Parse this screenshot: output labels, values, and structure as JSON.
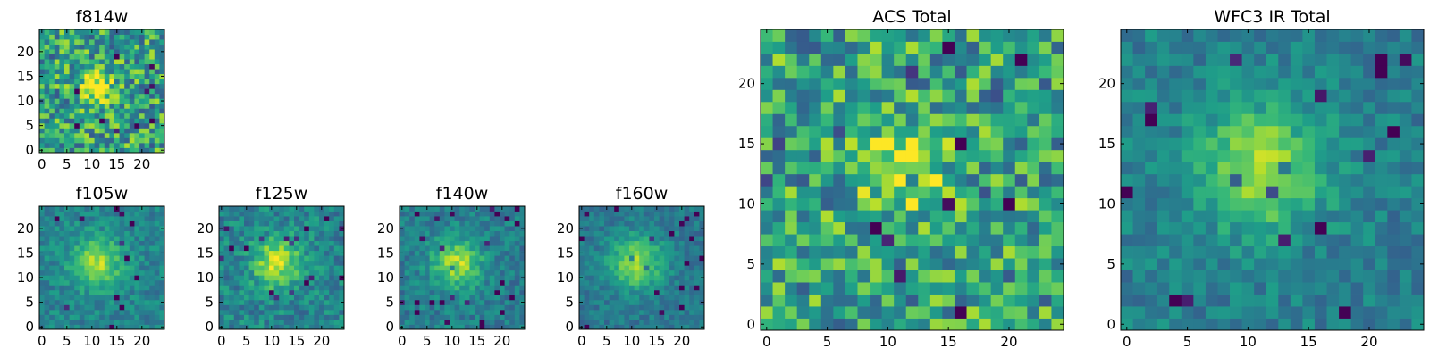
{
  "chart_data": [
    {
      "type": "heatmap",
      "title": "f814w",
      "xticks": [
        0,
        5,
        10,
        15,
        20
      ],
      "yticks": [
        0,
        5,
        10,
        15,
        20
      ],
      "xlim": [
        0,
        24
      ],
      "ylim": [
        0,
        24
      ],
      "grid_size": 25,
      "colormap": "viridis",
      "peak": [
        11,
        13
      ],
      "spread": 2.2,
      "noise": 0.3,
      "base": 0.58
    },
    {
      "type": "heatmap",
      "title": "f105w",
      "xticks": [
        0,
        5,
        10,
        15,
        20
      ],
      "yticks": [
        0,
        5,
        10,
        15,
        20
      ],
      "xlim": [
        0,
        24
      ],
      "ylim": [
        0,
        24
      ],
      "grid_size": 25,
      "colormap": "viridis",
      "peak": [
        11,
        13
      ],
      "spread": 3.5,
      "noise": 0.12,
      "base": 0.45
    },
    {
      "type": "heatmap",
      "title": "f125w",
      "xticks": [
        0,
        5,
        10,
        15,
        20
      ],
      "yticks": [
        0,
        5,
        10,
        15,
        20
      ],
      "xlim": [
        0,
        24
      ],
      "ylim": [
        0,
        24
      ],
      "grid_size": 25,
      "colormap": "viridis",
      "peak": [
        11,
        13
      ],
      "spread": 3.5,
      "noise": 0.15,
      "base": 0.45
    },
    {
      "type": "heatmap",
      "title": "f140w",
      "xticks": [
        0,
        5,
        10,
        15,
        20
      ],
      "yticks": [
        0,
        5,
        10,
        15,
        20
      ],
      "xlim": [
        0,
        24
      ],
      "ylim": [
        0,
        24
      ],
      "grid_size": 25,
      "colormap": "viridis",
      "peak": [
        11,
        13
      ],
      "spread": 3.5,
      "noise": 0.12,
      "base": 0.42
    },
    {
      "type": "heatmap",
      "title": "f160w",
      "xticks": [
        0,
        5,
        10,
        15,
        20
      ],
      "yticks": [
        0,
        5,
        10,
        15,
        20
      ],
      "xlim": [
        0,
        24
      ],
      "ylim": [
        0,
        24
      ],
      "grid_size": 25,
      "colormap": "viridis",
      "peak": [
        11,
        13
      ],
      "spread": 3.8,
      "noise": 0.1,
      "base": 0.4
    },
    {
      "type": "heatmap",
      "title": "ACS Total",
      "xticks": [
        0,
        5,
        10,
        15,
        20
      ],
      "yticks": [
        0,
        5,
        10,
        15,
        20
      ],
      "xlim": [
        0,
        24
      ],
      "ylim": [
        0,
        24
      ],
      "grid_size": 25,
      "colormap": "viridis",
      "peak": [
        11,
        13
      ],
      "spread": 2.2,
      "noise": 0.3,
      "base": 0.58
    },
    {
      "type": "heatmap",
      "title": "WFC3 IR Total",
      "xticks": [
        0,
        5,
        10,
        15,
        20
      ],
      "yticks": [
        0,
        5,
        10,
        15,
        20
      ],
      "xlim": [
        0,
        24
      ],
      "ylim": [
        0,
        24
      ],
      "grid_size": 25,
      "colormap": "viridis",
      "peak": [
        11,
        13
      ],
      "spread": 3.6,
      "noise": 0.12,
      "base": 0.43
    }
  ],
  "colors": {
    "viridis_low": "#440154",
    "viridis_mid": "#21918c",
    "viridis_high": "#fde725"
  }
}
